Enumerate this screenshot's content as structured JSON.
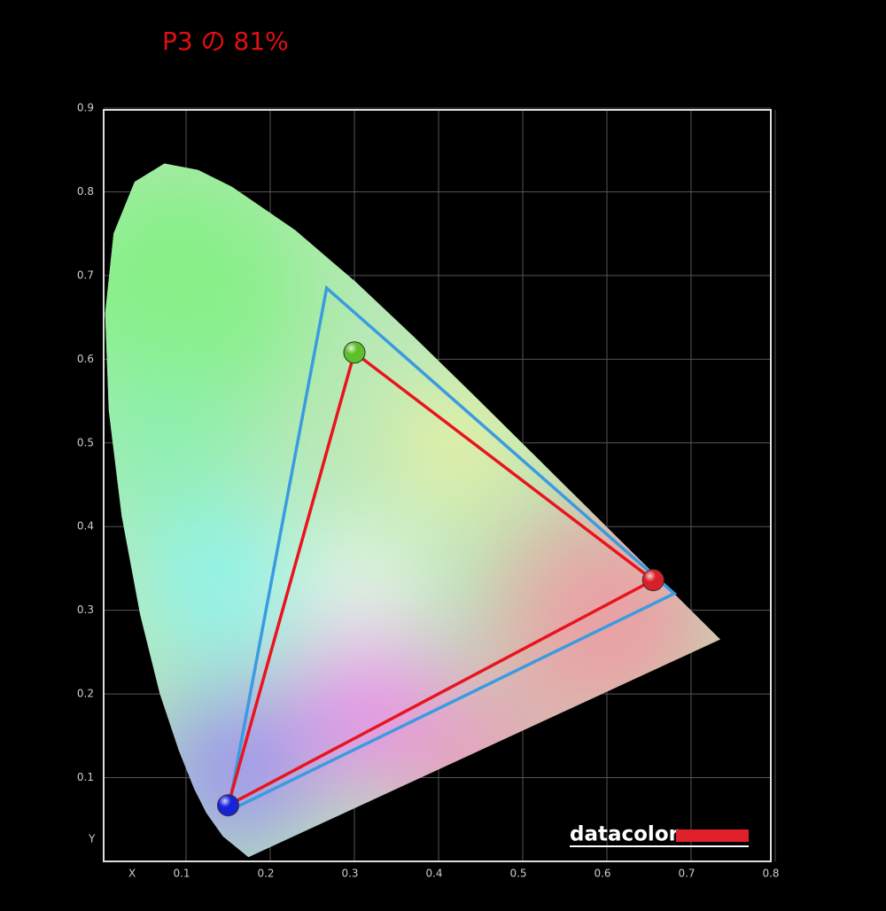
{
  "chart_data": {
    "type": "gamut",
    "title": "P3 の 81%",
    "x_label": "X",
    "y_label": "Y",
    "xlim": [
      0,
      0.8
    ],
    "ylim": [
      0,
      0.9
    ],
    "xticks": [
      0.1,
      0.2,
      0.3,
      0.4,
      0.5,
      0.6,
      0.7,
      0.8
    ],
    "yticks": [
      0.1,
      0.2,
      0.3,
      0.4,
      0.5,
      0.6,
      0.7,
      0.8,
      0.9
    ],
    "grid": true,
    "locus": {
      "x": [
        0.1741,
        0.144,
        0.1241,
        0.1096,
        0.0913,
        0.0687,
        0.0454,
        0.0235,
        0.0082,
        0.0039,
        0.0139,
        0.0389,
        0.0743,
        0.1142,
        0.1547,
        0.2296,
        0.3016,
        0.3731,
        0.4441,
        0.5125,
        0.5752,
        0.627,
        0.6915,
        0.7347
      ],
      "y": [
        0.005,
        0.0297,
        0.0578,
        0.0868,
        0.1327,
        0.2007,
        0.295,
        0.4127,
        0.5384,
        0.6548,
        0.7502,
        0.812,
        0.8338,
        0.8262,
        0.8059,
        0.7543,
        0.6923,
        0.6245,
        0.5547,
        0.4866,
        0.4242,
        0.3725,
        0.3083,
        0.2653
      ]
    },
    "series": [
      {
        "color": "#3b9be0",
        "x": [
          0.68,
          0.267,
          0.15
        ],
        "y": [
          0.32,
          0.685,
          0.06
        ]
      },
      {
        "color": "#e8141e",
        "x": [
          0.655,
          0.3,
          0.15
        ],
        "y": [
          0.336,
          0.608,
          0.067
        ],
        "marker_colors": [
          "#d8202a",
          "#5cc02a",
          "#1a22d8"
        ]
      }
    ],
    "logo": "datacolor"
  }
}
